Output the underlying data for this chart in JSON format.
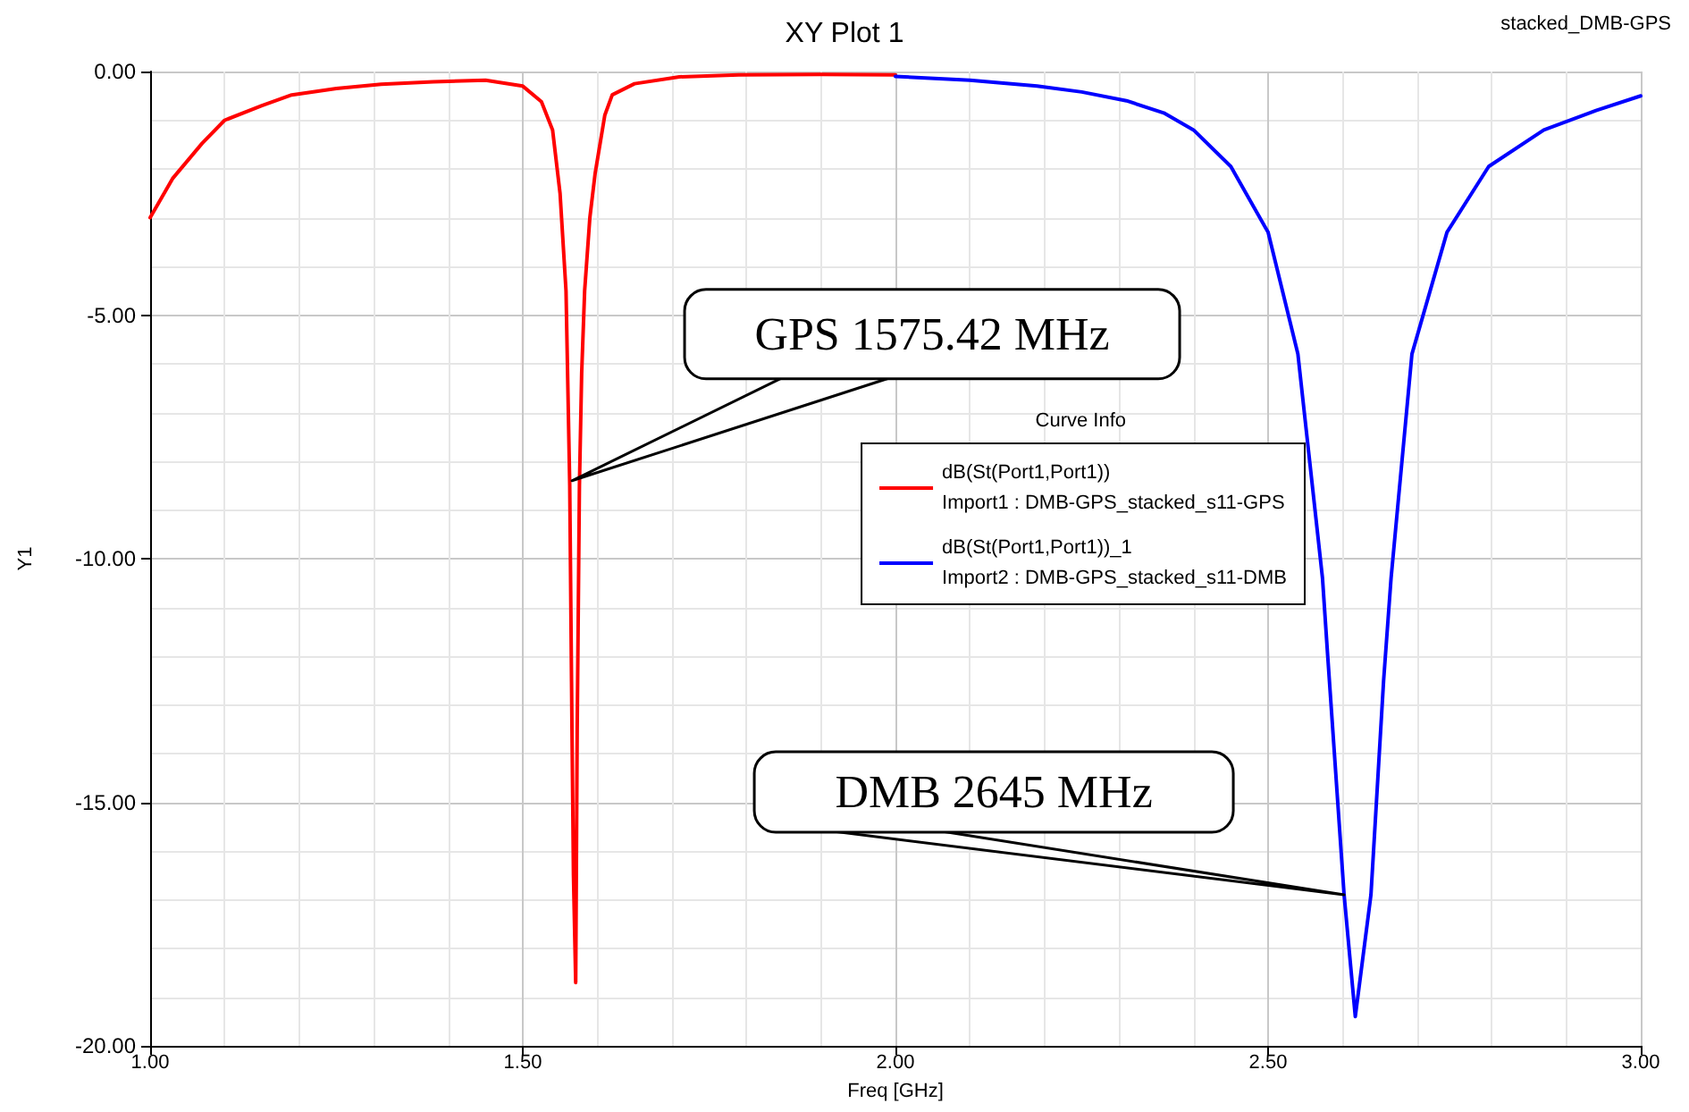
{
  "chart_data": {
    "type": "line",
    "title": "XY Plot 1",
    "xlabel": "Freq [GHz]",
    "ylabel": "Y1",
    "legend_title": "Curve Info",
    "legend": "center",
    "grid": true,
    "marker": "none",
    "line_style": "solid",
    "xlim": [
      1,
      3
    ],
    "ylim": [
      -20,
      0
    ],
    "xticks": [
      {
        "value": 1,
        "label": "1.00"
      },
      {
        "value": 1.5,
        "label": "1.50"
      },
      {
        "value": 2,
        "label": "2.00"
      },
      {
        "value": 2.5,
        "label": "2.50"
      },
      {
        "value": 3,
        "label": "3.00"
      }
    ],
    "yticks": [
      {
        "value": -20,
        "label": "-20.00"
      },
      {
        "value": -15,
        "label": "-15.00"
      },
      {
        "value": -10,
        "label": "-10.00"
      },
      {
        "value": -5,
        "label": "-5.00"
      },
      {
        "value": 0,
        "label": "0.00"
      }
    ],
    "series": [
      {
        "name": "dB(St(Port1,Port1))\nImport1 : DMB-GPS_stacked_s11-GPS",
        "color": "#ff0000",
        "x": [
          1,
          1.03,
          1.07,
          1.1,
          1.15,
          1.19,
          1.25,
          1.31,
          1.38,
          1.45,
          1.5,
          1.525,
          1.54,
          1.55,
          1.558,
          1.563,
          1.566,
          1.568,
          1.571,
          1.573,
          1.576,
          1.579,
          1.583,
          1.59,
          1.597,
          1.61,
          1.62,
          1.65,
          1.71,
          1.79,
          1.9,
          2
        ],
        "values": [
          -3,
          -2.2,
          -1.47,
          -1,
          -0.7,
          -0.48,
          -0.35,
          -0.26,
          -0.21,
          -0.18,
          -0.3,
          -0.62,
          -1.2,
          -2.5,
          -4.5,
          -8.5,
          -13.5,
          -16.5,
          -18.7,
          -13.5,
          -8.5,
          -6.2,
          -4.5,
          -3,
          -2.1,
          -0.9,
          -0.48,
          -0.25,
          -0.11,
          -0.07,
          -0.06,
          -0.07
        ]
      },
      {
        "name": "dB(St(Port1,Port1))_1\nImport2 : DMB-GPS_stacked_s11-DMB",
        "color": "#0000ff",
        "x": [
          2,
          2.1,
          2.19,
          2.25,
          2.31,
          2.36,
          2.4,
          2.45,
          2.5,
          2.54,
          2.573,
          2.58,
          2.602,
          2.617,
          2.638,
          2.655,
          2.665,
          2.693,
          2.74,
          2.796,
          2.87,
          2.94,
          3
        ],
        "values": [
          -0.1,
          -0.18,
          -0.3,
          -0.42,
          -0.6,
          -0.85,
          -1.2,
          -1.95,
          -3.3,
          -5.8,
          -10.4,
          -12,
          -16.9,
          -19.4,
          -16.9,
          -12.5,
          -10.4,
          -5.8,
          -3.3,
          -1.95,
          -1.2,
          -0.8,
          -0.5
        ]
      }
    ],
    "annotations": [
      {
        "text": "GPS 1575.42 MHz",
        "x": 1.566,
        "y": -8.4
      },
      {
        "text": "DMB 2645 MHz",
        "x": 2.602,
        "y": -16.9
      },
      "stacked_DMB-GPS"
    ]
  }
}
